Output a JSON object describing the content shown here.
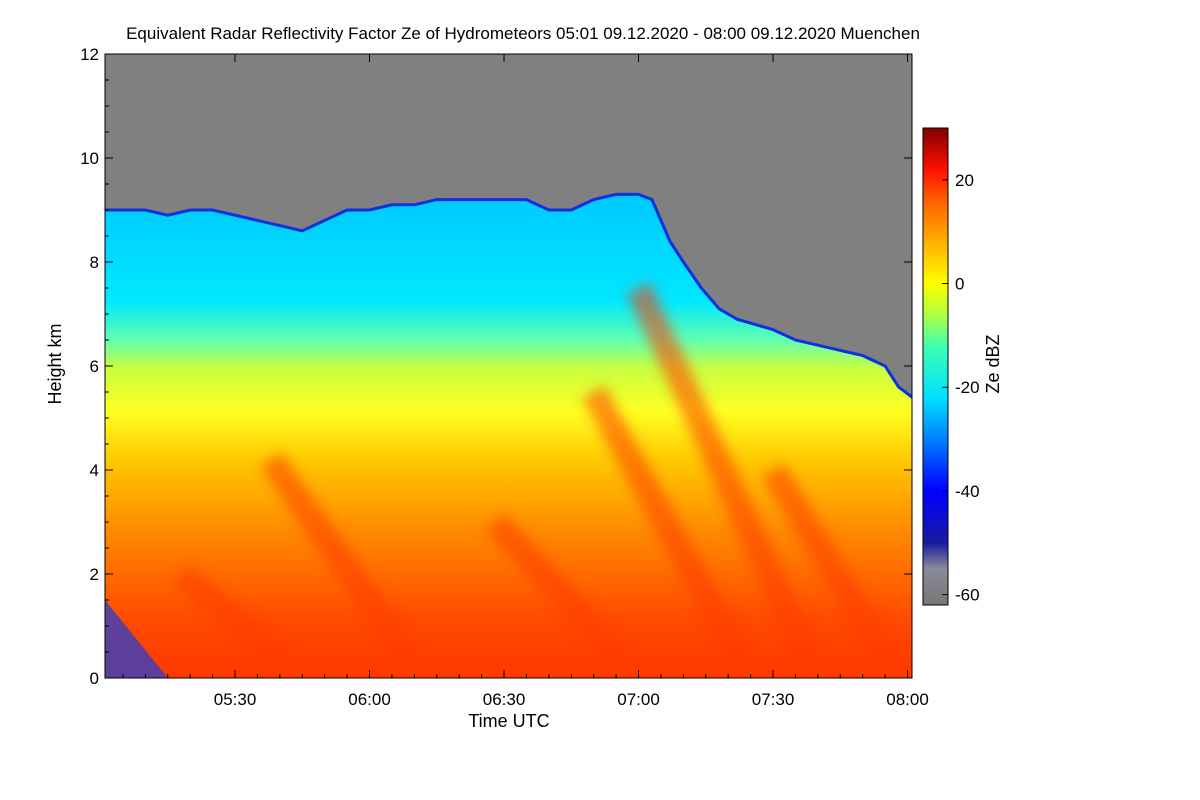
{
  "chart_data": {
    "type": "heatmap",
    "title": "Equivalent Radar Reflectivity Factor Ze of Hydrometeors   05:01 09.12.2020 - 08:00 09.12.2020 Muenchen",
    "xlabel": "Time UTC",
    "ylabel": "Height km",
    "x_range_minutes_utc": [
      301,
      481
    ],
    "x_ticks": [
      {
        "value": 330,
        "label": "05:30"
      },
      {
        "value": 360,
        "label": "06:00"
      },
      {
        "value": 390,
        "label": "06:30"
      },
      {
        "value": 420,
        "label": "07:00"
      },
      {
        "value": 450,
        "label": "07:30"
      },
      {
        "value": 480,
        "label": "08:00"
      }
    ],
    "ylim": [
      0,
      12
    ],
    "y_ticks": [
      0,
      2,
      4,
      6,
      8,
      10,
      12
    ],
    "colorbar": {
      "label": "Ze dBZ",
      "range": [
        -62,
        30
      ],
      "ticks": [
        20,
        0,
        -20,
        -40,
        -60
      ],
      "stops": [
        {
          "value": -62,
          "color": "#777777"
        },
        {
          "value": -55,
          "color": "#8a8a9a"
        },
        {
          "value": -50,
          "color": "#1a1aa0"
        },
        {
          "value": -40,
          "color": "#0000ff"
        },
        {
          "value": -30,
          "color": "#0080ff"
        },
        {
          "value": -22,
          "color": "#00e0ff"
        },
        {
          "value": -12,
          "color": "#40ffb0"
        },
        {
          "value": -6,
          "color": "#b0ff40"
        },
        {
          "value": 0,
          "color": "#ffff00"
        },
        {
          "value": 8,
          "color": "#ffb000"
        },
        {
          "value": 16,
          "color": "#ff6000"
        },
        {
          "value": 22,
          "color": "#ff1000"
        },
        {
          "value": 30,
          "color": "#800000"
        }
      ]
    },
    "no_signal_color": "#808080",
    "echo_top_km": [
      [
        301,
        9.0
      ],
      [
        305,
        9.0
      ],
      [
        310,
        9.0
      ],
      [
        315,
        8.9
      ],
      [
        320,
        9.0
      ],
      [
        325,
        9.0
      ],
      [
        330,
        8.9
      ],
      [
        335,
        8.8
      ],
      [
        340,
        8.7
      ],
      [
        345,
        8.6
      ],
      [
        350,
        8.8
      ],
      [
        355,
        9.0
      ],
      [
        360,
        9.0
      ],
      [
        365,
        9.1
      ],
      [
        370,
        9.1
      ],
      [
        375,
        9.2
      ],
      [
        380,
        9.2
      ],
      [
        385,
        9.2
      ],
      [
        390,
        9.2
      ],
      [
        395,
        9.2
      ],
      [
        400,
        9.0
      ],
      [
        405,
        9.0
      ],
      [
        410,
        9.2
      ],
      [
        415,
        9.3
      ],
      [
        420,
        9.3
      ],
      [
        423,
        9.2
      ],
      [
        427,
        8.4
      ],
      [
        430,
        8.0
      ],
      [
        434,
        7.5
      ],
      [
        438,
        7.1
      ],
      [
        442,
        6.9
      ],
      [
        446,
        6.8
      ],
      [
        450,
        6.7
      ],
      [
        455,
        6.5
      ],
      [
        460,
        6.4
      ],
      [
        465,
        6.3
      ],
      [
        470,
        6.2
      ],
      [
        475,
        6.0
      ],
      [
        478,
        5.6
      ],
      [
        481,
        5.4
      ]
    ]
  }
}
